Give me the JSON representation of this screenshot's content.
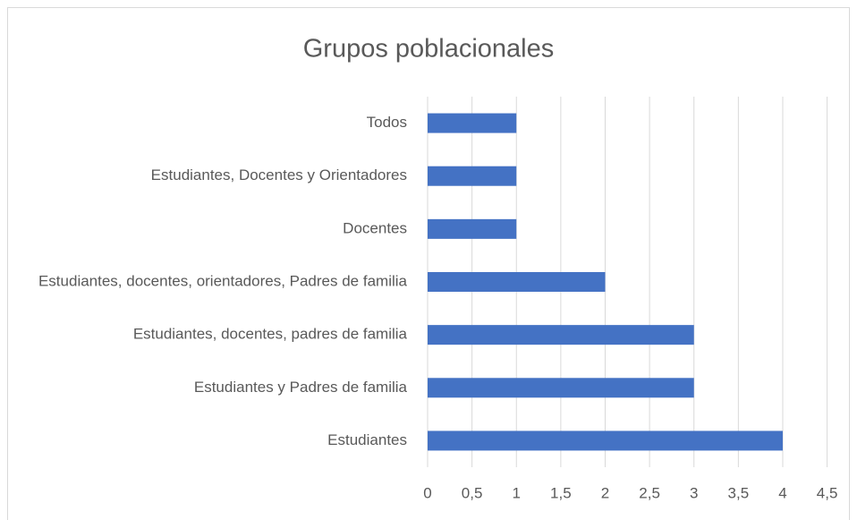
{
  "chart_data": {
    "type": "bar",
    "orientation": "horizontal",
    "title": "Grupos poblacionales",
    "categories": [
      "Estudiantes",
      "Estudiantes y Padres de familia",
      "Estudiantes, docentes, padres de familia",
      "Estudiantes, docentes, orientadores, Padres de familia",
      "Docentes",
      "Estudiantes, Docentes y Orientadores",
      "Todos"
    ],
    "values": [
      4,
      3,
      3,
      2,
      1,
      1,
      1
    ],
    "color": "#4472c4",
    "xlim": [
      0,
      4.5
    ],
    "xticks": [
      0,
      {
        "value": 0.5,
        "label": "0,5"
      },
      1,
      {
        "value": 1.5,
        "label": "1,5"
      },
      2,
      {
        "value": 2.5,
        "label": "2,5"
      },
      3,
      {
        "value": 3.5,
        "label": "3,5"
      },
      4,
      {
        "value": 4.5,
        "label": "4,5"
      }
    ],
    "grid": true
  }
}
